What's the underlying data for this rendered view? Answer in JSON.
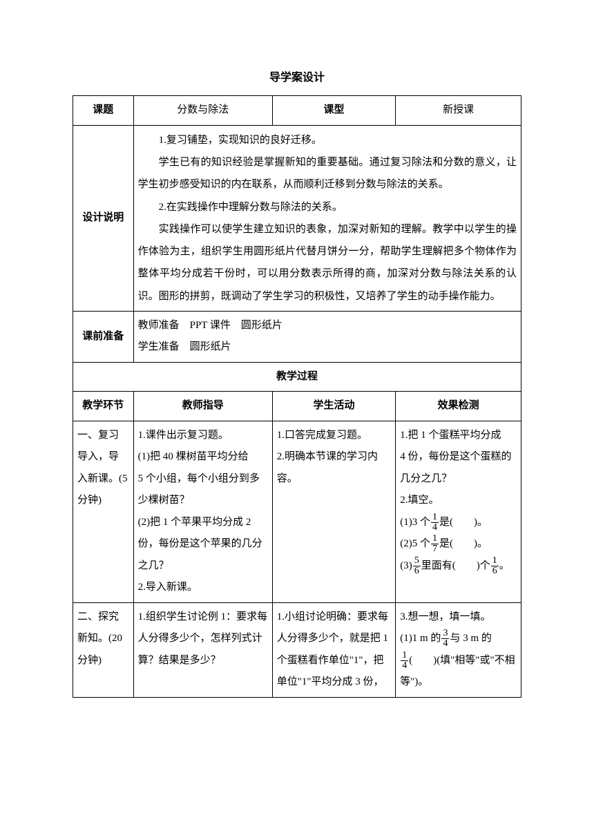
{
  "docTitle": "导学案设计",
  "headerRow": {
    "c1": "课题",
    "c2": "分数与除法",
    "c3": "课型",
    "c4": "新授课"
  },
  "designLabel": "设计说明",
  "design": {
    "p1": "1.复习铺垫，实现知识的良好迁移。",
    "p2": "学生已有的知识经验是掌握新知的重要基础。通过复习除法和分数的意义，让学生初步感受知识的内在联系，从而顺利迁移到分数与除法的关系。",
    "p3": "2.在实践操作中理解分数与除法的关系。",
    "p4": "实践操作可以使学生建立知识的表象，加深对新知的理解。教学中以学生的操作体验为主，组织学生用圆形纸片代替月饼分一分，帮助学生理解把多个物体作为整体平均分成若干份时，可以用分数表示所得的商，加深对分数与除法关系的认识。图形的拼剪，既调动了学生学习的积极性，又培养了学生的动手操作能力。"
  },
  "prepLabel": "课前准备",
  "prep": {
    "line1": "教师准备　PPT 课件　圆形纸片",
    "line2": "学生准备　圆形纸片"
  },
  "processHeader": "教学过程",
  "columnsHeader": {
    "c1": "教学环节",
    "c2": "教师指导",
    "c3": "学生活动",
    "c4": "效果检测"
  },
  "row1": {
    "c1a": "一、复习导入，导入新课。(5",
    "c1b": "分钟)",
    "c2a": "1.课件出示复习题。",
    "c2b": "(1)把 40 棵树苗平均分给",
    "c2c": "5 个小组，每个小组分到多少棵树苗？",
    "c2d": "(2)把 1 个苹果平均分成 2",
    "c2e": "份，每份是这个苹果的几分之几？",
    "c2f": "2.导入新课。",
    "c3a": "1.口答完成复习题。",
    "c3b": "2.明确本节课的学习内容。",
    "c4a": "1.把 1 个蛋糕平均分成",
    "c4b": "4 份，每份是这个蛋糕的几分之几？",
    "c4c": "2.填空。",
    "c4d_pre": "(1)3 个",
    "c4d_post": "是(　　)。",
    "c4e_pre": "(2)5 个",
    "c4e_post": "是(　　)。",
    "c4f_pre": "(3)",
    "c4f_mid": "里面有(　　)个",
    "c4f_post": "。"
  },
  "row2": {
    "c1a": "二、探究新知。(20",
    "c1b": "分钟)",
    "c2a": "1.组织学生讨论例 1：要求每人分得多少个，怎样列式计算？结果是多少？",
    "c3a": "1.小组讨论明确：要求每人分得多少个，就是把 1",
    "c3b": "个蛋糕看作单位\"1\"，把单位\"1\"平均分成 3 份，",
    "c4a": "3.想一想，填一填。",
    "c4b_pre": "(1)1 m 的",
    "c4b_mid": "与 3 m 的",
    "c4c_post": "(　　)(填\"相等\"或\"不相等\")。"
  },
  "fractions": {
    "f1_4": {
      "num": "1",
      "den": "4"
    },
    "f1_7": {
      "num": "1",
      "den": "7"
    },
    "f5_6": {
      "num": "5",
      "den": "6"
    },
    "f1_6": {
      "num": "1",
      "den": "6"
    },
    "f3_4": {
      "num": "3",
      "den": "4"
    }
  }
}
